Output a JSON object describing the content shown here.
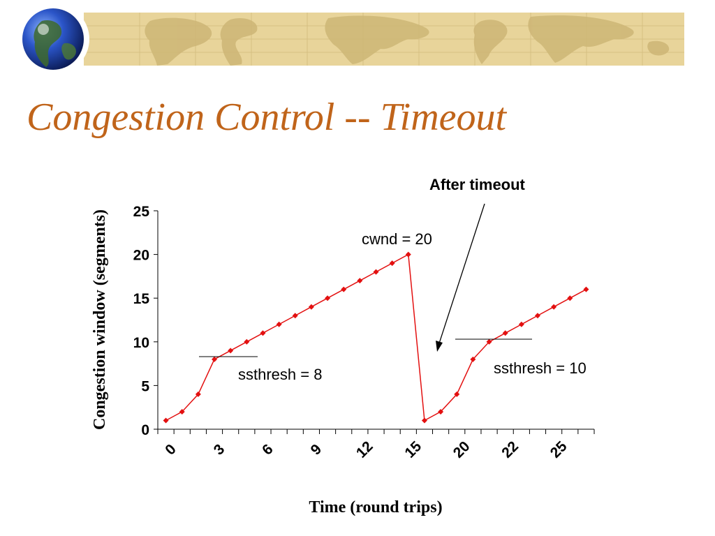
{
  "slide": {
    "title": "Congestion Control -- Timeout"
  },
  "banner": {
    "globe_icon": "globe-icon",
    "background_color": "#e8d49a",
    "map_color": "#c9b06a"
  },
  "chart_data": {
    "type": "line",
    "title": "",
    "xlabel": "Time (round trips)",
    "ylabel": "Congestion window (segments)",
    "ylim": [
      0,
      25
    ],
    "yticks": [
      "0",
      "5",
      "10",
      "15",
      "20",
      "25"
    ],
    "xtick_labels": [
      "0",
      "3",
      "6",
      "9",
      "12",
      "15",
      "20",
      "22",
      "25"
    ],
    "grid": false,
    "legend": "none",
    "series_color": "#e31010",
    "series": [
      {
        "values": [
          1,
          2,
          4,
          8,
          9,
          10,
          11,
          12,
          13,
          14,
          15,
          16,
          17,
          18,
          19,
          20,
          1,
          2,
          4,
          8,
          10,
          11,
          12,
          13,
          14,
          15,
          16
        ]
      }
    ],
    "annotations": {
      "cwnd": "cwnd = 20",
      "ssthresh1": "ssthresh = 8",
      "ssthresh2": "ssthresh = 10",
      "after_timeout": "After timeout"
    }
  }
}
